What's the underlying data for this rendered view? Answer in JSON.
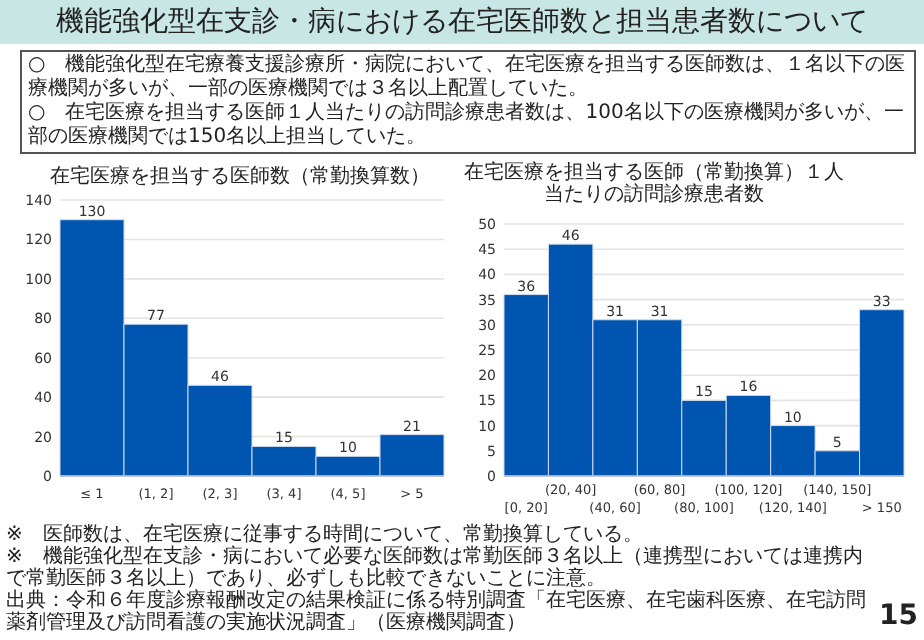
{
  "chart_data": [
    {
      "type": "other",
      "title": "機能強化型在支診・病における在宅医師数と担当患者数について",
      "annotations": [
        "○　機能強化型在宅療養支援診療所・病院において、在宅医療を担当する医師数は、１名以下の医療機関が多いが、一部の医療機関では３名以上配置していた。",
        "○　在宅医療を担当する医師１人当たりの訪問診療患者数は、100名以下の医療機関が多いが、一部の医療機関では150名以上担当していた。",
        "※　医師数は、在宅医療に従事する時間について、常勤換算している。",
        "※　機能強化型在支診・病において必要な医師数は常勤医師３名以上（連携型においては連携内で常勤医師３名以上）であり、必ずしも比較できないことに注意。",
        "出典：令和６年度診療報酬改定の結果検証に係る特別調査「在宅医療、在宅歯科医療、在宅訪問薬剤管理及び訪問看護の実施状況調査」（医療機関調査）",
        "15"
      ]
    },
    {
      "type": "bar",
      "title": "在宅医療を担当する医師数（常勤換算数）",
      "categories": [
        "≤ 1",
        "(1, 2]",
        "(2, 3]",
        "(3, 4]",
        "(4, 5]",
        "> 5"
      ],
      "values": [
        130,
        77,
        46,
        15,
        10,
        21
      ],
      "color": "#0055b0",
      "ylim": [
        0,
        140
      ],
      "yticks": [
        0,
        20,
        40,
        60,
        80,
        100,
        120,
        140
      ],
      "grid": "y",
      "data_labels": true
    },
    {
      "type": "bar",
      "title": "在宅医療を担当する医師（常勤換算）１人当たりの訪問診療患者数",
      "categories": [
        "[0, 20]",
        "(20, 40]",
        "(40, 60]",
        "(60, 80]",
        "(80, 100]",
        "(100, 120]",
        "(120, 140]",
        "(140, 150]",
        "> 150"
      ],
      "values": [
        36,
        46,
        31,
        31,
        15,
        16,
        10,
        5,
        33
      ],
      "color": "#0055b0",
      "ylim": [
        0,
        50
      ],
      "yticks": [
        0,
        5,
        10,
        15,
        20,
        25,
        30,
        35,
        40,
        45,
        50
      ],
      "grid": "y",
      "data_labels": true
    }
  ]
}
